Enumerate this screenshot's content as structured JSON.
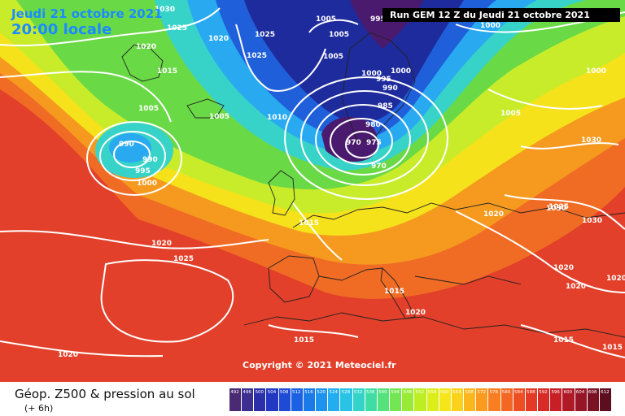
{
  "header": {
    "date": "Jeudi 21 octobre 2021",
    "local_time": "20:00 locale",
    "run": "Run GEM 12 Z du Jeudi 21 octobre 2021"
  },
  "footer": {
    "title": "Géop. Z500 & pression au sol",
    "subtitle": "(+ 6h)",
    "copyright": "Copyright © 2021 Meteociel.fr"
  },
  "scale": {
    "labels": [
      "492",
      "496",
      "500",
      "504",
      "508",
      "512",
      "516",
      "520",
      "524",
      "528",
      "532",
      "536",
      "540",
      "544",
      "548",
      "552",
      "556",
      "560",
      "564",
      "568",
      "572",
      "576",
      "580",
      "584",
      "588",
      "592",
      "596",
      "600",
      "604",
      "608",
      "612"
    ],
    "colors": [
      "#4a2a73",
      "#3c2f90",
      "#2b2fa8",
      "#2238c2",
      "#1f4ad6",
      "#1b62e2",
      "#1a7ae8",
      "#1d93ee",
      "#23acf0",
      "#2ac3e6",
      "#33d3c9",
      "#3fdda4",
      "#55e27c",
      "#74e654",
      "#99ea36",
      "#bded23",
      "#dcee1a",
      "#f5e61a",
      "#fad11b",
      "#fbb51d",
      "#fa9a1f",
      "#f77f21",
      "#f36623",
      "#ec4f24",
      "#e43a25",
      "#d82a26",
      "#c71f26",
      "#b01926",
      "#961526",
      "#7a1224",
      "#5c0e1f"
    ]
  },
  "map": {
    "colors": {
      "deep": "#4a1a6e",
      "dark_blue": "#1e2b9c",
      "blue": "#1f5fd9",
      "light_blue": "#29aaf0",
      "cyan": "#38d3c8",
      "green": "#6ad946",
      "yellow_green": "#c8ec2a",
      "yellow": "#f5e21b",
      "orange": "#f59a1f",
      "red_orange": "#f06b24",
      "red": "#e2402a"
    },
    "isobar_labels": [
      {
        "text": "1030"
      },
      {
        "text": "1025"
      },
      {
        "text": "1020"
      },
      {
        "text": "1015"
      },
      {
        "text": "1005"
      },
      {
        "text": "1020"
      },
      {
        "text": "1025"
      },
      {
        "text": "1025"
      },
      {
        "text": "1005"
      },
      {
        "text": "1005"
      },
      {
        "text": "1005"
      },
      {
        "text": "995"
      },
      {
        "text": "1000"
      },
      {
        "text": "1000"
      },
      {
        "text": "995"
      },
      {
        "text": "990"
      },
      {
        "text": "985"
      },
      {
        "text": "980"
      },
      {
        "text": "975"
      },
      {
        "text": "970"
      },
      {
        "text": "970"
      },
      {
        "text": "1010"
      },
      {
        "text": "1005"
      },
      {
        "text": "990"
      },
      {
        "text": "990"
      },
      {
        "text": "995"
      },
      {
        "text": "1000"
      },
      {
        "text": "1015"
      },
      {
        "text": "1020"
      },
      {
        "text": "1025"
      },
      {
        "text": "1020"
      },
      {
        "text": "1015"
      },
      {
        "text": "1020"
      },
      {
        "text": "1015"
      },
      {
        "text": "1020"
      },
      {
        "text": "1025"
      },
      {
        "text": "1030"
      },
      {
        "text": "1030"
      },
      {
        "text": "1030"
      },
      {
        "text": "1020"
      },
      {
        "text": "1020"
      },
      {
        "text": "1020"
      },
      {
        "text": "1015"
      },
      {
        "text": "1015"
      },
      {
        "text": "1000"
      },
      {
        "text": "1005"
      },
      {
        "text": "1000"
      }
    ]
  }
}
